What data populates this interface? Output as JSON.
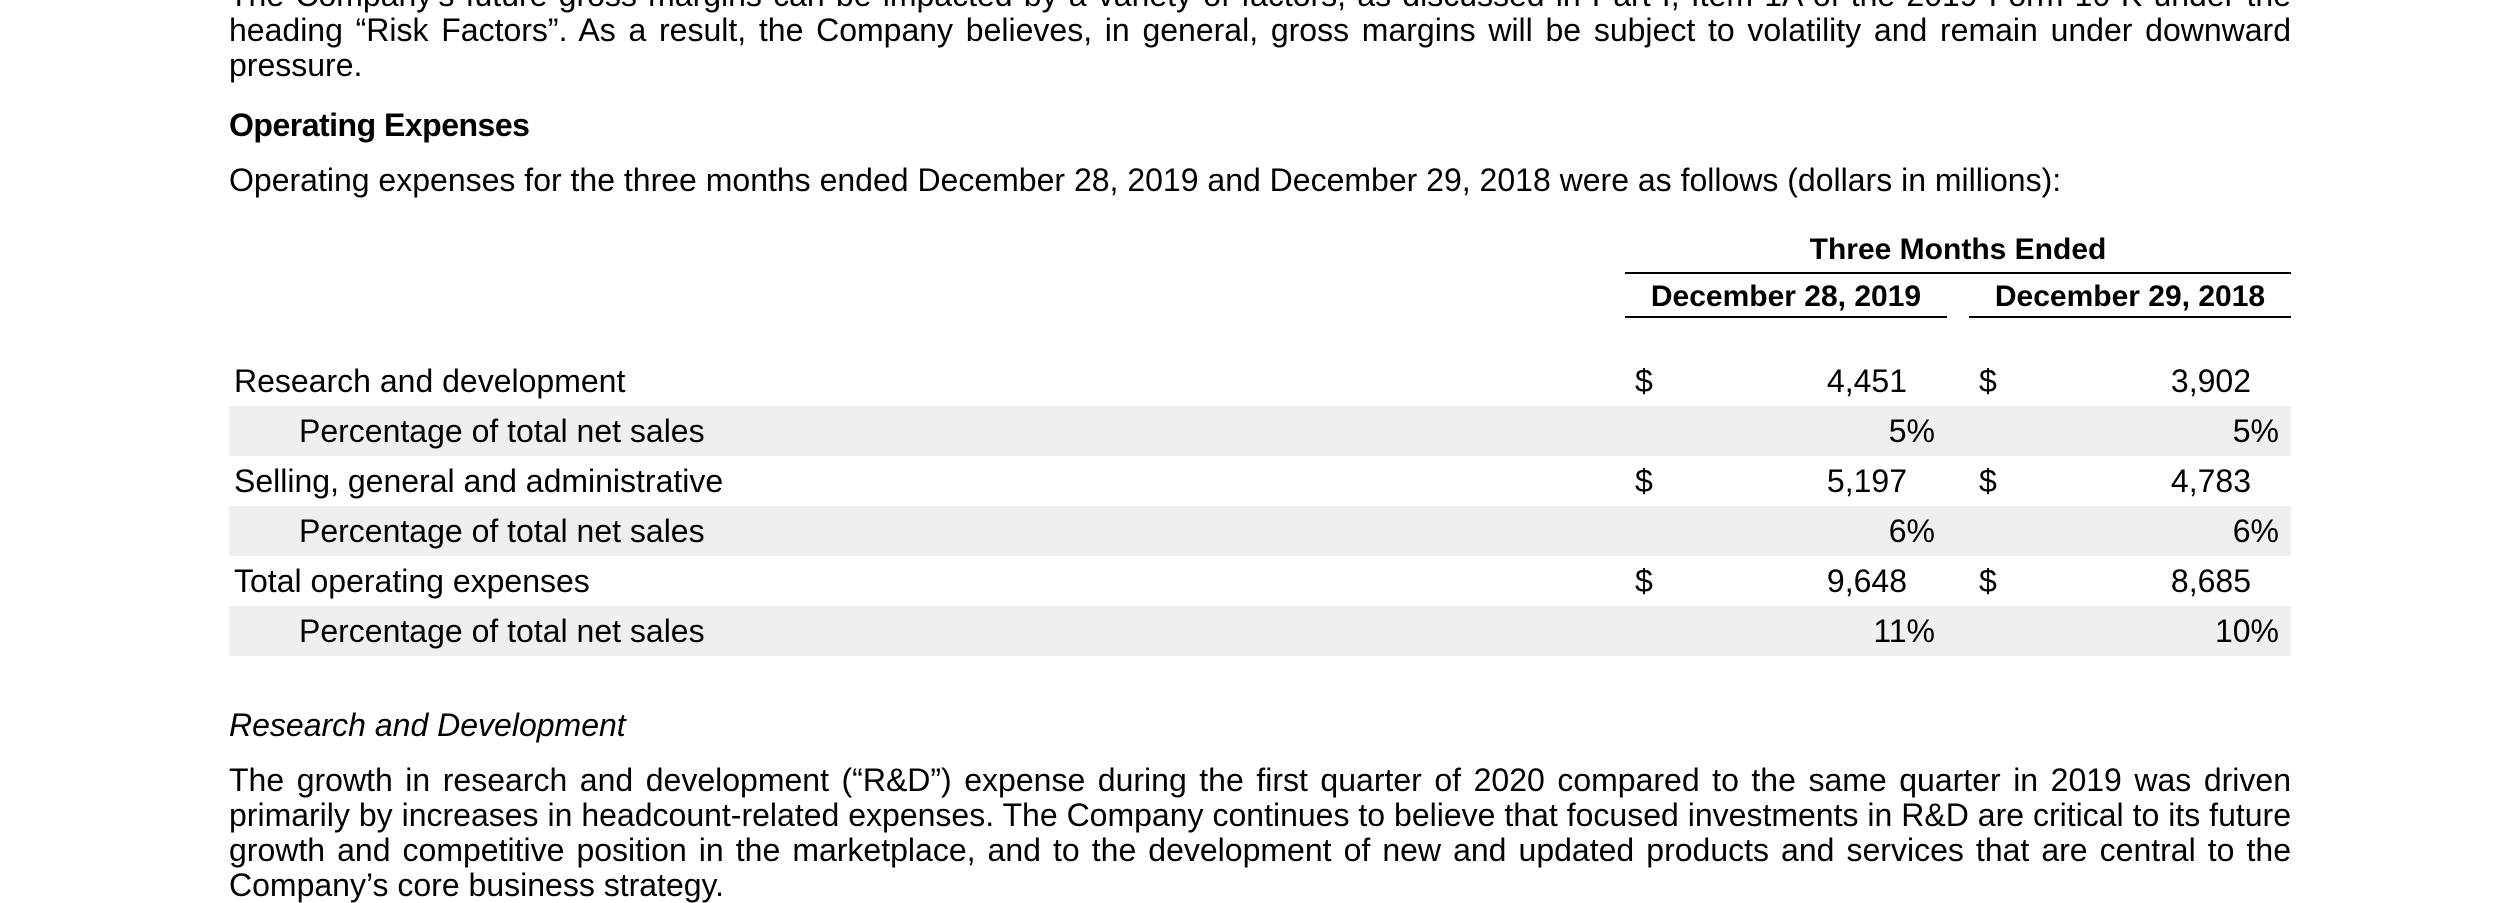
{
  "top_paragraph": "The Company's future gross margins can be impacted by a variety of factors, as discussed in Part I, Item 1A of the 2019 Form 10-K under the heading “Risk Factors”. As a result, the Company believes, in general, gross margins will be subject to volatility and remain under downward pressure.",
  "section_heading": "Operating Expenses",
  "intro_text": "Operating expenses for the three months ended December 28, 2019 and December 29, 2018 were as follows (dollars in millions):",
  "table": {
    "group_header": "Three Months Ended",
    "col1_header": "December 28, 2019",
    "col2_header": "December 29, 2018",
    "rows": [
      {
        "label": "Research and development",
        "dollar1": "$",
        "v1": "4,451",
        "dollar2": "$",
        "v2": "3,902"
      },
      {
        "label": "Percentage of total net sales",
        "dollar1": "",
        "v1": "5%",
        "dollar2": "",
        "v2": "5%"
      },
      {
        "label": "Selling, general and administrative",
        "dollar1": "$",
        "v1": "5,197",
        "dollar2": "$",
        "v2": "4,783"
      },
      {
        "label": "Percentage of total net sales",
        "dollar1": "",
        "v1": "6%",
        "dollar2": "",
        "v2": "6%"
      },
      {
        "label": "Total operating expenses",
        "dollar1": "$",
        "v1": "9,648",
        "dollar2": "$",
        "v2": "8,685"
      },
      {
        "label": "Percentage of total net sales",
        "dollar1": "",
        "v1": "11%",
        "dollar2": "",
        "v2": "10%"
      }
    ]
  },
  "subsection_title": "Research and Development",
  "bottom_paragraph": "The growth in research and development (“R&D”) expense during the first quarter of 2020 compared to the same quarter in 2019 was driven primarily by increases in headcount-related expenses. The Company continues to believe that focused investments in R&D are critical to its future growth and competitive position in the marketplace, and to the development of new and updated products and services that are central to the Company’s core business strategy."
}
